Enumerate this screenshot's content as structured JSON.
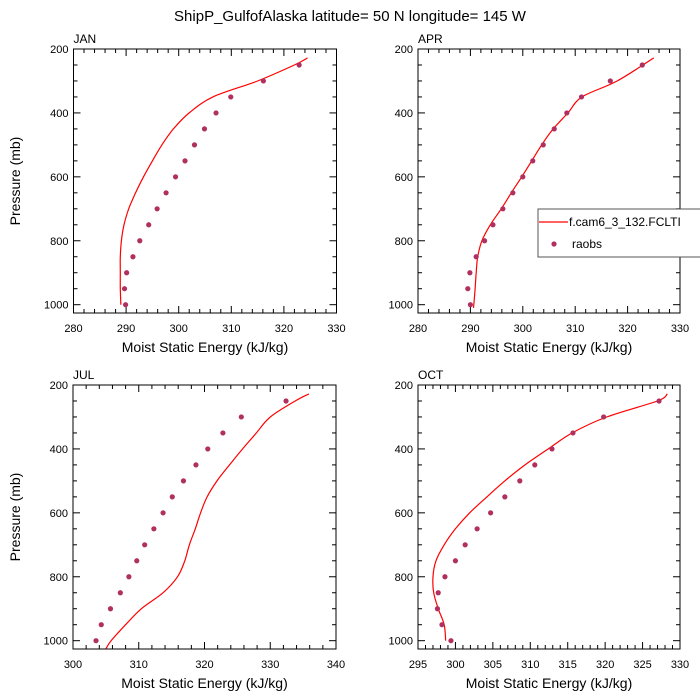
{
  "title": "ShipP_GulfofAlaska  latitude= 50 N longitude= 145 W",
  "colors": {
    "model": "#ff0000",
    "obs": "#b03060",
    "axis": "#000000"
  },
  "legend": {
    "model_label": "f.cam6_3_132.FCLTI",
    "obs_label": "raobs"
  },
  "chart_data": [
    {
      "type": "line",
      "title": "JAN",
      "xlabel": "Moist Static Energy (kJ/kg)",
      "ylabel": "Pressure (mb)",
      "xlim": [
        280,
        330
      ],
      "ylim": [
        1026,
        200
      ],
      "xticks": [
        280,
        290,
        300,
        310,
        320,
        330
      ],
      "yticks": [
        200,
        400,
        600,
        800,
        1000
      ],
      "series": [
        {
          "name": "f.cam6_3_132.FCLTI",
          "kind": "line",
          "p": [
            228,
            250,
            300,
            350,
            400,
            450,
            500,
            550,
            600,
            650,
            700,
            750,
            800,
            850,
            900,
            950,
            1000
          ],
          "x": [
            324.5,
            322.0,
            315.0,
            306.5,
            302.0,
            299.0,
            296.8,
            295.0,
            293.3,
            291.8,
            290.5,
            289.6,
            289.1,
            288.9,
            288.9,
            288.9,
            289.0
          ]
        },
        {
          "name": "raobs",
          "kind": "markers",
          "p": [
            250,
            300,
            350,
            400,
            450,
            500,
            550,
            600,
            650,
            700,
            750,
            800,
            850,
            900,
            950,
            1000
          ],
          "x": [
            322.9,
            316.1,
            309.9,
            307.1,
            304.9,
            303.0,
            301.2,
            299.4,
            297.6,
            295.9,
            294.3,
            292.6,
            291.3,
            290.1,
            289.7,
            289.9
          ]
        }
      ]
    },
    {
      "type": "line",
      "title": "APR",
      "xlabel": "Moist Static Energy (kJ/kg)",
      "ylabel": "",
      "xlim": [
        280,
        330
      ],
      "ylim": [
        1026,
        200
      ],
      "xticks": [
        280,
        290,
        300,
        310,
        320,
        330
      ],
      "yticks": [
        200,
        400,
        600,
        800,
        1000
      ],
      "legend": "right",
      "series": [
        {
          "name": "f.cam6_3_132.FCLTI",
          "kind": "line",
          "p": [
            228,
            300,
            350,
            400,
            450,
            500,
            550,
            600,
            650,
            700,
            750,
            800,
            850,
            900,
            950,
            1010
          ],
          "x": [
            325.0,
            318.0,
            311.3,
            308.6,
            305.8,
            303.6,
            301.7,
            299.8,
            297.8,
            295.9,
            293.8,
            292.2,
            291.4,
            291.1,
            290.9,
            290.6
          ]
        },
        {
          "name": "raobs",
          "kind": "markers",
          "p": [
            250,
            300,
            350,
            400,
            450,
            500,
            550,
            600,
            650,
            700,
            750,
            800,
            850,
            900,
            950,
            1000
          ],
          "x": [
            322.8,
            316.7,
            311.2,
            308.4,
            306.0,
            303.9,
            301.9,
            300.0,
            298.1,
            296.2,
            294.3,
            292.7,
            291.1,
            289.9,
            289.5,
            290.0
          ]
        }
      ]
    },
    {
      "type": "line",
      "title": "JUL",
      "xlabel": "Moist Static Energy (kJ/kg)",
      "ylabel": "Pressure (mb)",
      "xlim": [
        300,
        340
      ],
      "ylim": [
        1026,
        200
      ],
      "xticks": [
        300,
        310,
        320,
        330,
        340
      ],
      "yticks": [
        200,
        400,
        600,
        800,
        1000
      ],
      "series": [
        {
          "name": "f.cam6_3_132.FCLTI",
          "kind": "line",
          "p": [
            228,
            250,
            300,
            350,
            400,
            450,
            500,
            550,
            600,
            650,
            700,
            750,
            800,
            850,
            900,
            950,
            1000,
            1025
          ],
          "x": [
            335.9,
            333.8,
            330.0,
            327.9,
            325.8,
            323.8,
            321.9,
            320.4,
            319.4,
            318.6,
            317.7,
            317.0,
            315.9,
            313.7,
            310.4,
            308.0,
            305.8,
            305.0
          ]
        },
        {
          "name": "raobs",
          "kind": "markers",
          "p": [
            250,
            300,
            350,
            400,
            450,
            500,
            550,
            600,
            650,
            700,
            750,
            800,
            850,
            900,
            950,
            1000
          ],
          "x": [
            332.4,
            325.6,
            322.8,
            320.5,
            318.7,
            316.8,
            315.1,
            313.7,
            312.3,
            310.9,
            309.7,
            308.5,
            307.2,
            305.7,
            304.3,
            303.5
          ]
        }
      ]
    },
    {
      "type": "line",
      "title": "OCT",
      "xlabel": "Moist Static Energy (kJ/kg)",
      "ylabel": "",
      "xlim": [
        295,
        330
      ],
      "ylim": [
        1026,
        200
      ],
      "xticks": [
        295,
        300,
        305,
        310,
        315,
        320,
        325,
        330
      ],
      "yticks": [
        200,
        400,
        600,
        800,
        1000
      ],
      "series": [
        {
          "name": "f.cam6_3_132.FCLTI",
          "kind": "line",
          "p": [
            228,
            250,
            300,
            350,
            400,
            450,
            500,
            550,
            600,
            650,
            700,
            750,
            800,
            850,
            900,
            950,
            1000
          ],
          "x": [
            328.3,
            327.0,
            320.2,
            315.6,
            312.4,
            309.3,
            306.6,
            304.2,
            301.9,
            300.0,
            298.5,
            297.4,
            297.0,
            297.1,
            297.7,
            298.5,
            298.7
          ]
        },
        {
          "name": "raobs",
          "kind": "markers",
          "p": [
            250,
            300,
            350,
            400,
            450,
            500,
            550,
            600,
            650,
            700,
            750,
            800,
            850,
            900,
            950,
            1000
          ],
          "x": [
            327.2,
            319.8,
            315.7,
            312.9,
            310.6,
            308.6,
            306.6,
            304.7,
            302.9,
            301.3,
            300.0,
            298.6,
            297.7,
            297.6,
            298.2,
            299.4
          ]
        }
      ]
    }
  ]
}
